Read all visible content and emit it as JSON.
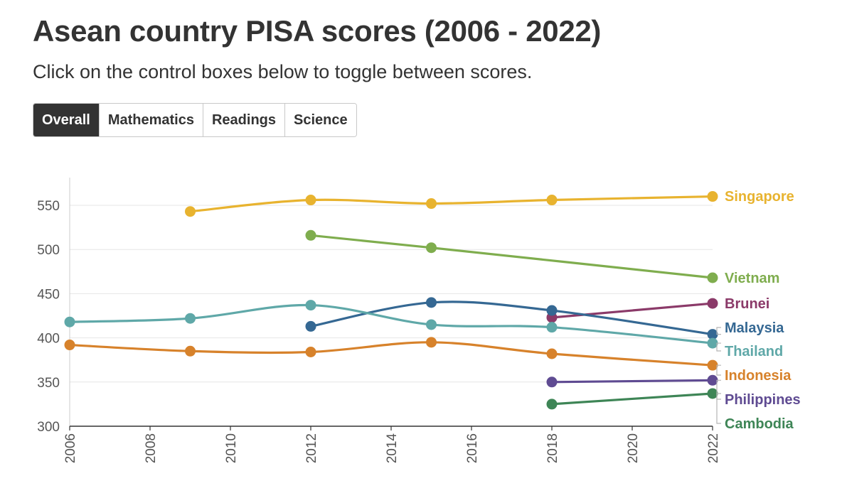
{
  "header": {
    "title": "Asean country PISA scores (2006 - 2022)",
    "subtitle": "Click on the control boxes below to toggle between scores."
  },
  "controls": {
    "buttons": [
      {
        "label": "Overall",
        "active": true
      },
      {
        "label": "Mathematics",
        "active": false
      },
      {
        "label": "Readings",
        "active": false
      },
      {
        "label": "Science",
        "active": false
      }
    ]
  },
  "chart_data": {
    "type": "line",
    "title": "",
    "xlabel": "",
    "ylabel": "",
    "xlim": [
      2006,
      2022
    ],
    "ylim": [
      300,
      570
    ],
    "x_ticks": [
      "2006",
      "2008",
      "2010",
      "2012",
      "2014",
      "2016",
      "2018",
      "2020",
      "2022"
    ],
    "y_ticks": [
      "300",
      "350",
      "400",
      "450",
      "500",
      "550"
    ],
    "grid": "horizontal",
    "legend": "direct labels at right end of each line",
    "series": [
      {
        "name": "Singapore",
        "color": "#e8b32f",
        "points": [
          [
            2009,
            543
          ],
          [
            2012,
            556
          ],
          [
            2015,
            552
          ],
          [
            2018,
            556
          ],
          [
            2022,
            560
          ]
        ]
      },
      {
        "name": "Vietnam",
        "color": "#7fad4e",
        "points": [
          [
            2012,
            516
          ],
          [
            2015,
            502
          ],
          [
            2022,
            468
          ]
        ]
      },
      {
        "name": "Brunei",
        "color": "#8b3a69",
        "points": [
          [
            2018,
            423
          ],
          [
            2022,
            439
          ]
        ]
      },
      {
        "name": "Malaysia",
        "color": "#356893",
        "points": [
          [
            2012,
            413
          ],
          [
            2015,
            440
          ],
          [
            2018,
            431
          ],
          [
            2022,
            404
          ]
        ]
      },
      {
        "name": "Thailand",
        "color": "#5fa8a8",
        "points": [
          [
            2006,
            418
          ],
          [
            2009,
            422
          ],
          [
            2012,
            437
          ],
          [
            2015,
            415
          ],
          [
            2018,
            412
          ],
          [
            2022,
            394
          ]
        ]
      },
      {
        "name": "Indonesia",
        "color": "#d7822b",
        "points": [
          [
            2006,
            392
          ],
          [
            2009,
            385
          ],
          [
            2012,
            384
          ],
          [
            2015,
            395
          ],
          [
            2018,
            382
          ],
          [
            2022,
            369
          ]
        ]
      },
      {
        "name": "Philippines",
        "color": "#5f4b92",
        "points": [
          [
            2018,
            350
          ],
          [
            2022,
            352
          ]
        ]
      },
      {
        "name": "Cambodia",
        "color": "#3e8556",
        "points": [
          [
            2018,
            325
          ],
          [
            2022,
            337
          ]
        ]
      }
    ]
  }
}
